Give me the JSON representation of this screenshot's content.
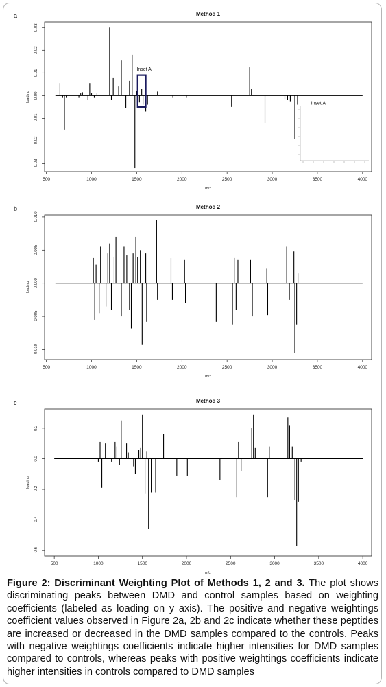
{
  "chart_data": [
    {
      "type": "bar",
      "panel_letter": "a",
      "title": "Method 1",
      "xlabel": "m/z",
      "ylabel": "loading",
      "xlim": [
        600,
        4000
      ],
      "ylim": [
        -0.03,
        0.03
      ],
      "xticks": [
        500,
        1000,
        1500,
        2000,
        2500,
        3000,
        3500,
        4000
      ],
      "xtick_labels": [
        "500",
        "1000",
        "1500",
        "2000",
        "2500",
        "3000",
        "3500",
        "4000"
      ],
      "yticks": [
        -0.03,
        -0.02,
        -0.01,
        0.0,
        0.01,
        0.02,
        0.03
      ],
      "ytick_labels": [
        "-0.03",
        "-0.02",
        "-0.01",
        "0.00",
        "0.01",
        "0.02",
        "0.03"
      ],
      "annotations": [
        {
          "text": "Inset A",
          "x": 1500,
          "y": 0.011
        },
        {
          "text": "Inset A",
          "x": 3430,
          "y": -0.004
        }
      ],
      "inset_box": {
        "x0": 1510,
        "x1": 1600,
        "y0": -0.005,
        "y1": 0.009
      },
      "x": [
        650,
        680,
        700,
        720,
        860,
        880,
        900,
        960,
        980,
        1000,
        1030,
        1060,
        1200,
        1220,
        1240,
        1300,
        1330,
        1380,
        1420,
        1450,
        1480,
        1500,
        1530,
        1555,
        1570,
        1600,
        1620,
        1730,
        1900,
        2050,
        2550,
        2750,
        2770,
        2920,
        3140,
        3170,
        3200,
        3250,
        3280
      ],
      "y": [
        0.0055,
        -0.001,
        -0.015,
        -0.001,
        -0.001,
        0.001,
        0.0015,
        -0.002,
        0.0055,
        0.001,
        -0.001,
        0.001,
        0.03,
        -0.002,
        0.008,
        0.004,
        0.0155,
        -0.0055,
        0.0065,
        0.018,
        -0.032,
        0.002,
        -0.003,
        0.003,
        -0.004,
        -0.007,
        -0.004,
        0.0018,
        -0.001,
        -0.001,
        -0.005,
        0.0125,
        0.003,
        -0.012,
        -0.0015,
        -0.002,
        -0.0025,
        -0.019,
        -0.004
      ]
    },
    {
      "type": "bar",
      "panel_letter": "b",
      "title": "Method 2",
      "xlabel": "m/z",
      "ylabel": "loading",
      "xlim": [
        600,
        4000
      ],
      "ylim": [
        -0.01,
        0.01
      ],
      "xticks": [
        500,
        1000,
        1500,
        2000,
        2500,
        3000,
        3500,
        4000
      ],
      "xtick_labels": [
        "500",
        "1000",
        "1500",
        "2000",
        "2500",
        "3000",
        "3500",
        "4000"
      ],
      "yticks": [
        -0.01,
        -0.005,
        0.0,
        0.005,
        0.01
      ],
      "ytick_labels": [
        "-0.010",
        "-0.005",
        "0.000",
        "0.005",
        "0.010"
      ],
      "x": [
        1020,
        1035,
        1050,
        1085,
        1100,
        1160,
        1180,
        1200,
        1220,
        1250,
        1270,
        1330,
        1360,
        1390,
        1420,
        1440,
        1460,
        1490,
        1510,
        1540,
        1560,
        1600,
        1610,
        1720,
        1730,
        1880,
        1895,
        2030,
        2040,
        2380,
        2560,
        2580,
        2600,
        2620,
        2760,
        2780,
        2940,
        2950,
        3160,
        3190,
        3240,
        3250,
        3270,
        3285
      ],
      "y": [
        0.0038,
        -0.0055,
        0.0028,
        -0.0045,
        0.0055,
        -0.0035,
        0.0045,
        0.006,
        -0.004,
        0.004,
        0.007,
        -0.005,
        0.0055,
        0.0042,
        -0.004,
        -0.0068,
        0.0045,
        0.007,
        0.004,
        0.005,
        -0.0092,
        0.0045,
        -0.0058,
        0.0095,
        -0.0025,
        0.0038,
        -0.0025,
        0.0035,
        -0.003,
        -0.0058,
        -0.0062,
        0.0038,
        -0.004,
        0.0035,
        0.0035,
        -0.005,
        0.0022,
        -0.0048,
        0.0055,
        -0.0025,
        0.0048,
        -0.0105,
        -0.0062,
        0.0015
      ]
    },
    {
      "type": "bar",
      "panel_letter": "c",
      "title": "Method 3",
      "xlabel": "m/z",
      "ylabel": "loading",
      "xlim": [
        500,
        4000
      ],
      "ylim": [
        -0.6,
        0.3
      ],
      "xticks": [
        500,
        1000,
        1500,
        2000,
        2500,
        3000,
        3500,
        4000
      ],
      "xtick_labels": [
        "500",
        "1000",
        "1500",
        "2000",
        "2500",
        "3000",
        "3500",
        "4000"
      ],
      "yticks": [
        -0.6,
        -0.4,
        -0.2,
        0.0,
        0.2
      ],
      "ytick_labels": [
        "-0.6",
        "-0.4",
        "-0.2",
        "0.0",
        "0.2"
      ],
      "x": [
        1000,
        1020,
        1040,
        1080,
        1150,
        1190,
        1210,
        1240,
        1260,
        1320,
        1340,
        1400,
        1420,
        1460,
        1480,
        1500,
        1530,
        1550,
        1570,
        1600,
        1650,
        1740,
        1890,
        2010,
        2380,
        2570,
        2590,
        2620,
        2740,
        2760,
        2780,
        2920,
        2940,
        3150,
        3170,
        3200,
        3230,
        3250,
        3270,
        3300
      ],
      "y": [
        -0.02,
        0.11,
        -0.19,
        0.1,
        -0.02,
        0.11,
        0.08,
        -0.04,
        0.25,
        0.1,
        0.04,
        -0.05,
        -0.1,
        0.06,
        0.07,
        0.29,
        -0.23,
        0.05,
        -0.46,
        -0.22,
        -0.22,
        0.16,
        -0.11,
        -0.11,
        -0.14,
        -0.25,
        0.11,
        -0.08,
        0.2,
        0.29,
        0.07,
        -0.25,
        0.08,
        0.27,
        0.22,
        0.08,
        -0.27,
        -0.57,
        -0.28,
        -0.02
      ]
    }
  ],
  "caption": {
    "bold": "Figure 2: Discriminant Weighting Plot of Methods 1, 2 and 3.",
    "body": " The plot shows discriminating peaks between DMD and control samples based on weighting coefficients (labeled as loading on y axis). The positive and negative weightings coefficient values observed in Figure 2a, 2b and 2c indicate whether these peptides are increased or decreased in the DMD samples compared to the controls. Peaks with negative weightings coefficients indicate higher intensities for DMD samples compared to controls, whereas peaks with positive weightings coefficients indicate higher intensities in controls compared to DMD samples"
  }
}
